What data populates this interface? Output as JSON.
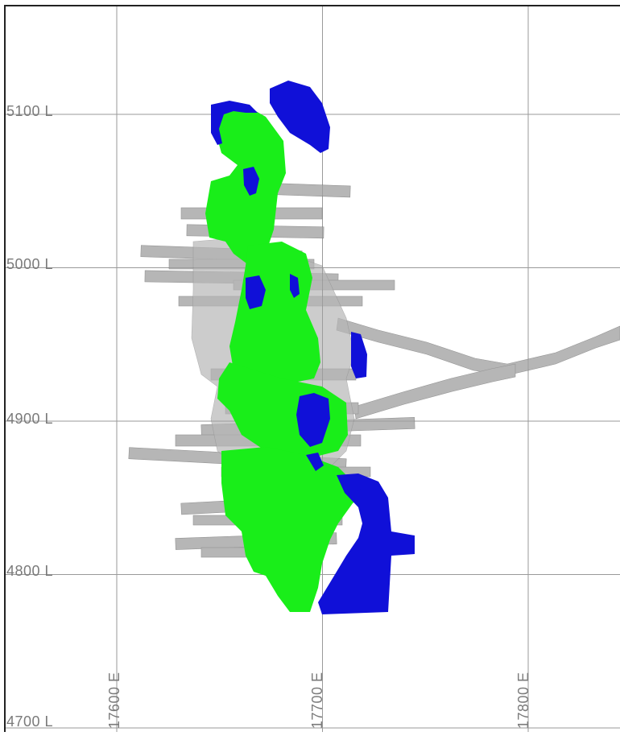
{
  "section_view": {
    "elevation_levels": [
      {
        "value": 5100,
        "label": "5100 L"
      },
      {
        "value": 5000,
        "label": "5000 L"
      },
      {
        "value": 4900,
        "label": "4900 L"
      },
      {
        "value": 4800,
        "label": "4800 L"
      },
      {
        "value": 4700,
        "label": "4700 L"
      }
    ],
    "easting_lines": [
      {
        "value": 17600,
        "label": "17600 E"
      },
      {
        "value": 17700,
        "label": "17700 E"
      },
      {
        "value": 17800,
        "label": "17800 E"
      }
    ],
    "colors": {
      "grid": "#9a9a9a",
      "frame": "#222222",
      "label": "#7a7a7a",
      "workings": "#9e9e9e",
      "workings_dark": "#6f6f6f",
      "stope_green": "#19ee19",
      "stope_blue": "#1010d8"
    }
  }
}
